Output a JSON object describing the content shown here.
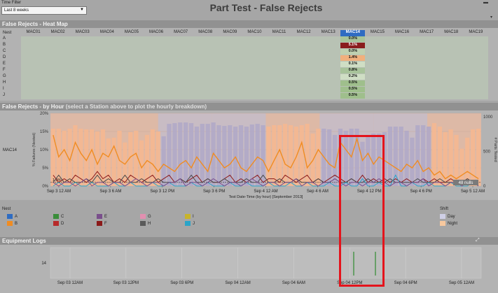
{
  "filter": {
    "label": "Time Filter",
    "value": "Last 8 weeks"
  },
  "title": "Part Test - False Rejects",
  "heatmap": {
    "header": "False Rejects - Heat Map",
    "nest_label": "Nest",
    "columns": [
      "MAC01",
      "MAC02",
      "MAC03",
      "MAC04",
      "MAC05",
      "MAC06",
      "MAC07",
      "MAC08",
      "MAC09",
      "MAC10",
      "MAC11",
      "MAC12",
      "MAC13",
      "MAC14",
      "MAC15",
      "MAC16",
      "MAC17",
      "MAC18",
      "MAC19"
    ],
    "selected": "MAC14",
    "rows": [
      "A",
      "B",
      "C",
      "D",
      "E",
      "F",
      "G",
      "H",
      "I",
      "J"
    ],
    "mac14_values": [
      "0.0%",
      "5.1%",
      "0.0%",
      "1.4%",
      "0.1%",
      "0.8%",
      "0.2%",
      "0.5%",
      "0.5%",
      "0.5%"
    ],
    "mac14_colors": [
      "#a8c39a",
      "#8a1d1d",
      "#bfd0b0",
      "#f1b07d",
      "#cfdec4",
      "#a8c39a",
      "#cfdec4",
      "#9fbf8c",
      "#9fbf8c",
      "#9fbf8c"
    ]
  },
  "hourly": {
    "header": "False Rejects - by Hour",
    "subheader": "(select a Station above to plot the hourly breakdown)",
    "station": "MAC14",
    "nulls_label": "48 nulls"
  },
  "chart_data": {
    "type": "bar",
    "title": "",
    "xlabel": "Test Date-Time (by hour) [September 2013]",
    "ylabel": "% Failures (Nested)",
    "y2label": "# Parts Tested",
    "ylim": [
      0,
      20
    ],
    "y_ticks": [
      "0%",
      "5%",
      "10%",
      "15%",
      "20%"
    ],
    "y2lim": [
      0,
      1000
    ],
    "y2_ticks": [
      "0",
      "500",
      "1000"
    ],
    "x_ticks": [
      "Sep 3 12 AM",
      "Sep 3 6 AM",
      "Sep 3 12 PM",
      "Sep 3 6 PM",
      "Sep 4 12 AM",
      "Sep 4 6 AM",
      "Sep 4 12 PM",
      "Sep 4 6 PM",
      "Sep 5 12 AM"
    ],
    "threshold_label": "1.0%",
    "threshold": 1.0,
    "shift_bands": [
      "Night",
      "Night",
      "Day",
      "Day",
      "Night",
      "Day",
      "Day",
      "Night"
    ],
    "bars": [
      830,
      830,
      800,
      830,
      880,
      830,
      820,
      820,
      790,
      820,
      690,
      700,
      800,
      630,
      780,
      800,
      660,
      740,
      820,
      790,
      720,
      900,
      910,
      920,
      920,
      910,
      860,
      900,
      900,
      920,
      880,
      870,
      880,
      860,
      880,
      860,
      890,
      900,
      880,
      860,
      880,
      880,
      900,
      880,
      860,
      880,
      900,
      760,
      830,
      830,
      820,
      740,
      830,
      800,
      830,
      830,
      640,
      740,
      760,
      760,
      780,
      860,
      860,
      860,
      800,
      700,
      880,
      880,
      860,
      910,
      860,
      780,
      820,
      740,
      540,
      700,
      820,
      830
    ],
    "series": [
      {
        "name": "B",
        "color": "#f08c22",
        "values": [
          14,
          8,
          10,
          7,
          12,
          9,
          7,
          10,
          6,
          9,
          8,
          11,
          7,
          6,
          8,
          9,
          5,
          7,
          6,
          4,
          6,
          5,
          4,
          6,
          7,
          5,
          8,
          6,
          4,
          9,
          7,
          5,
          6,
          8,
          5,
          4,
          6,
          8,
          7,
          4,
          7,
          10,
          6,
          5,
          8,
          12,
          5,
          7,
          10,
          8,
          6,
          5,
          12,
          10,
          8,
          13,
          7,
          9,
          6,
          8,
          7,
          6,
          5,
          4,
          6,
          5,
          7,
          4,
          5,
          3,
          4,
          2,
          3,
          2,
          3,
          4,
          3,
          2
        ]
      },
      {
        "name": "D",
        "color": "#8b1a1a",
        "values": [
          3,
          1,
          2,
          1,
          3,
          2,
          1,
          2,
          4,
          2,
          3,
          1,
          2,
          1,
          3,
          2,
          1,
          2,
          3,
          1,
          2,
          3,
          1,
          2,
          1,
          2,
          3,
          1,
          2,
          1,
          1,
          2,
          3,
          1,
          2,
          1,
          2,
          3,
          1,
          2,
          2,
          1,
          3,
          2,
          1,
          2,
          3,
          1,
          2,
          1,
          2,
          3,
          2,
          1,
          2,
          1,
          3,
          1,
          2,
          1,
          2,
          1,
          2,
          1,
          2,
          1,
          1,
          2,
          1,
          2,
          1,
          1,
          2,
          1,
          1,
          2,
          1,
          1
        ]
      },
      {
        "name": "H",
        "color": "#4a4a4a",
        "values": [
          1,
          3,
          1,
          2,
          1,
          1,
          2,
          1,
          3,
          1,
          2,
          1,
          1,
          3,
          1,
          1,
          2,
          1,
          1,
          2,
          1,
          1,
          1,
          2,
          1,
          3,
          1,
          1,
          2,
          1,
          1,
          2,
          1,
          1,
          1,
          2,
          1,
          1,
          3,
          1,
          1,
          2,
          1,
          1,
          2,
          1,
          1,
          1,
          2,
          1,
          1,
          2,
          1,
          1,
          2,
          1,
          1,
          2,
          1,
          1,
          1,
          2,
          1,
          1,
          1,
          1,
          2,
          1,
          1,
          1,
          2,
          1,
          1,
          1,
          1,
          2,
          1,
          1
        ]
      },
      {
        "name": "J",
        "color": "#2aa4c8",
        "values": [
          0,
          1,
          0,
          0,
          1,
          0,
          0,
          1,
          0,
          0,
          0,
          1,
          0,
          0,
          1,
          0,
          0,
          0,
          1,
          0,
          0,
          1,
          0,
          0,
          0,
          1,
          0,
          0,
          1,
          0,
          0,
          0,
          1,
          0,
          0,
          1,
          0,
          0,
          0,
          1,
          0,
          0,
          0,
          1,
          0,
          0,
          1,
          0,
          0,
          0,
          1,
          0,
          0,
          1,
          0,
          0,
          2,
          0,
          0,
          1,
          0,
          0,
          3,
          0,
          0,
          1,
          0,
          0,
          1,
          0,
          0,
          0,
          1,
          0,
          0,
          0,
          1,
          0
        ]
      },
      {
        "name": "E",
        "color": "#7a4f8c",
        "values": [
          1,
          0,
          1,
          1,
          0,
          1,
          2,
          0,
          1,
          1,
          0,
          1,
          1,
          0,
          1,
          2,
          1,
          0,
          1,
          1,
          0,
          1,
          1,
          2,
          0,
          1,
          1,
          0,
          1,
          2,
          1,
          0,
          1,
          1,
          0,
          1,
          2,
          1,
          0,
          1,
          1,
          0,
          1,
          1,
          2,
          0,
          1,
          1,
          0,
          1,
          1,
          2,
          1,
          0,
          1,
          1,
          0,
          1,
          1,
          2,
          1,
          0,
          1,
          1,
          0,
          1,
          1,
          2,
          0,
          1,
          1,
          0,
          1,
          1,
          0,
          1,
          1,
          0
        ]
      }
    ]
  },
  "legend": {
    "nest_title": "Nest",
    "items": [
      {
        "label": "A",
        "color": "#2f6cc2"
      },
      {
        "label": "B",
        "color": "#f08c22"
      },
      {
        "label": "C",
        "color": "#3a8d3a"
      },
      {
        "label": "D",
        "color": "#b72a2a"
      },
      {
        "label": "E",
        "color": "#7a4f8c"
      },
      {
        "label": "F",
        "color": "#8b1a1a"
      },
      {
        "label": "G",
        "color": "#e28fb0"
      },
      {
        "label": "H",
        "color": "#5a5a5a"
      },
      {
        "label": "I",
        "color": "#c8b42a"
      },
      {
        "label": "J",
        "color": "#2aa4c8"
      }
    ],
    "shift_title": "Shift",
    "shift_items": [
      {
        "label": "Day",
        "color": "#cfcfe6"
      },
      {
        "label": "Night",
        "color": "#f7c89e"
      }
    ]
  },
  "equipment": {
    "header": "Equipment Logs",
    "row_label": "14",
    "x_ticks": [
      "Sep 03 12AM",
      "Sep 03 12PM",
      "Sep 03 6PM",
      "Sep 04 12AM",
      "Sep 04 6AM",
      "Sep 04 12PM",
      "Sep 04 6PM",
      "Sep 05 12AM"
    ]
  }
}
